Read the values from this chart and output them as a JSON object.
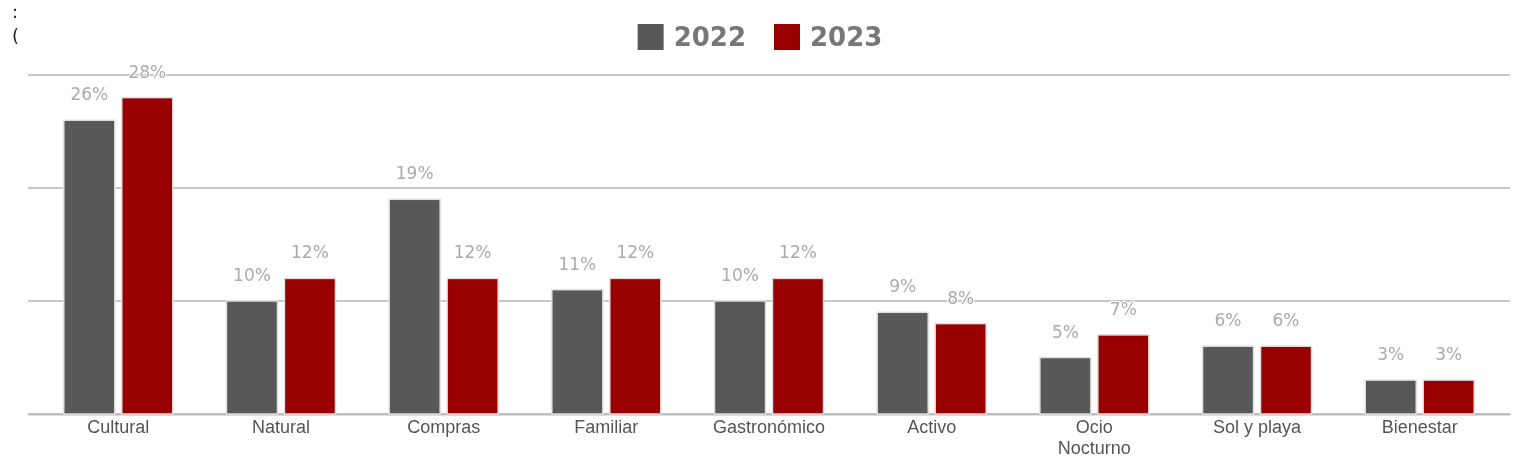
{
  "chart_data": {
    "type": "bar",
    "categories": [
      "Cultural",
      "Natural",
      "Compras",
      "Familiar",
      "Gastronómico",
      "Activo",
      "Ocio Nocturno",
      "Sol y playa",
      "Bienestar"
    ],
    "series": [
      {
        "name": "2022",
        "color": "#58585a",
        "values": [
          26,
          10,
          19,
          11,
          10,
          9,
          5,
          6,
          3
        ],
        "value_labels": [
          "26%",
          "10%",
          "19%",
          "11%",
          "10%",
          "9%",
          "5%",
          "6%",
          "3%"
        ]
      },
      {
        "name": "2023",
        "color": "#990000",
        "values": [
          28,
          12,
          12,
          12,
          12,
          8,
          7,
          6,
          3
        ],
        "value_labels": [
          "28%",
          "12%",
          "12%",
          "12%",
          "12%",
          "8%",
          "7%",
          "6%",
          "3%"
        ]
      }
    ],
    "ylim": [
      0,
      30
    ],
    "yticks": [
      {
        "value": 0,
        "label": null
      },
      {
        "value": 10,
        "label": null
      },
      {
        "value": 20,
        "label": null
      },
      {
        "value": 30,
        "label": null
      }
    ],
    "tick_labels": "x",
    "grid": "y",
    "legend": "top",
    "annotations": [
      ":",
      "("
    ]
  }
}
